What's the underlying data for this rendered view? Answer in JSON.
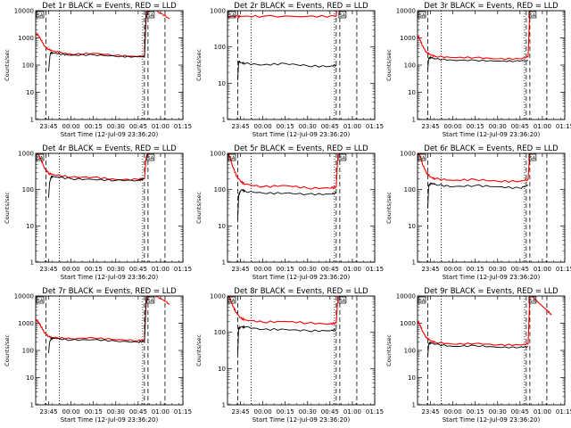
{
  "chart_data": [
    {
      "type": "line",
      "title": "Det 1r BLACK = Events, RED = LLD",
      "ylabel": "Counts/sec",
      "xlabel": "Start Time (12-Jul-09 23:36:20)",
      "yscale": "log",
      "ylim": [
        1,
        10000
      ],
      "xticks": [
        "23:45",
        "00:00",
        "00:15",
        "00:30",
        "00:45",
        "01:00",
        "01:15"
      ],
      "y_ticks": [
        "1",
        "10",
        "100",
        "1000",
        "10000"
      ],
      "markers": [
        "SA",
        "SA"
      ],
      "series": [
        {
          "color": "#000000",
          "x": [
            23.75,
            23.76,
            23.77,
            23.8,
            23.9,
            24.0,
            24.25,
            24.5,
            24.7,
            24.82,
            24.84,
            24.86
          ],
          "y": [
            60,
            150,
            280,
            280,
            250,
            230,
            240,
            210,
            200,
            210,
            12000,
            12000
          ]
        },
        {
          "color": "#ff0000",
          "x": [
            23.61,
            23.63,
            23.66,
            23.7,
            23.75,
            23.8,
            23.9,
            24.0,
            24.25,
            24.5,
            24.7,
            24.82,
            24.84,
            24.9,
            25.0,
            25.1
          ],
          "y": [
            1400,
            1300,
            900,
            500,
            370,
            330,
            280,
            250,
            270,
            230,
            210,
            210,
            7000,
            12000,
            8000,
            5000
          ]
        }
      ]
    },
    {
      "type": "line",
      "title": "Det 2r BLACK = Events, RED = LLD",
      "ylabel": "Counts/sec",
      "xlabel": "Start Time (12-Jul-09 23:36:20)",
      "yscale": "log",
      "ylim": [
        1,
        1000
      ],
      "xticks": [
        "23:45",
        "00:00",
        "00:15",
        "00:30",
        "00:45",
        "01:00",
        "01:15"
      ],
      "y_ticks": [
        "1",
        "10",
        "100",
        "1000"
      ],
      "markers": [
        "SA",
        "SA"
      ],
      "series": [
        {
          "color": "#000000",
          "x": [
            23.72,
            23.73,
            23.75,
            23.8,
            24.0,
            24.25,
            24.5,
            24.75,
            24.82
          ],
          "y": [
            12,
            40,
            37,
            35,
            32,
            35,
            30,
            29,
            32
          ]
        },
        {
          "color": "#ff0000",
          "x": [
            23.61,
            23.72,
            23.75,
            24.0,
            24.5,
            24.82,
            24.83
          ],
          "y": [
            700,
            700,
            700,
            700,
            700,
            700,
            1200
          ]
        }
      ]
    },
    {
      "type": "line",
      "title": "Det 3r BLACK = Events, RED = LLD",
      "ylabel": "Counts/sec",
      "xlabel": "Start Time (12-Jul-09 23:36:20)",
      "yscale": "log",
      "ylim": [
        1,
        10000
      ],
      "xticks": [
        "23:45",
        "00:00",
        "00:15",
        "00:30",
        "00:45",
        "01:00",
        "01:15"
      ],
      "y_ticks": [
        "1",
        "10",
        "100",
        "1000",
        "10000"
      ],
      "markers": [
        "SA",
        "SA"
      ],
      "series": [
        {
          "color": "#000000",
          "x": [
            23.72,
            23.73,
            23.76,
            23.8,
            24.0,
            24.25,
            24.5,
            24.7,
            24.84
          ],
          "y": [
            70,
            180,
            190,
            170,
            150,
            150,
            140,
            140,
            150
          ]
        },
        {
          "color": "#ff0000",
          "x": [
            23.61,
            23.63,
            23.66,
            23.7,
            23.75,
            23.8,
            24.0,
            24.25,
            24.5,
            24.75,
            24.84,
            24.86
          ],
          "y": [
            1200,
            900,
            500,
            300,
            240,
            210,
            190,
            190,
            170,
            170,
            200,
            12000
          ]
        }
      ]
    },
    {
      "type": "line",
      "title": "Det 4r BLACK = Events, RED = LLD",
      "ylabel": "Counts/sec",
      "xlabel": "Start Time (12-Jul-09 23:36:20)",
      "yscale": "log",
      "ylim": [
        1,
        1000
      ],
      "xticks": [
        "23:45",
        "00:00",
        "00:15",
        "00:30",
        "00:45",
        "01:00",
        "01:15"
      ],
      "y_ticks": [
        "1",
        "10",
        "100",
        "1000"
      ],
      "markers": [
        "SA",
        "SA"
      ],
      "series": [
        {
          "color": "#000000",
          "x": [
            23.75,
            23.76,
            23.78,
            23.8,
            24.0,
            24.25,
            24.5,
            24.75,
            24.82
          ],
          "y": [
            60,
            150,
            230,
            230,
            200,
            190,
            180,
            180,
            200
          ]
        },
        {
          "color": "#ff0000",
          "x": [
            23.61,
            23.63,
            23.66,
            23.7,
            23.75,
            23.8,
            24.0,
            24.25,
            24.5,
            24.75,
            24.82,
            24.84,
            24.9,
            25.0,
            25.1
          ],
          "y": [
            1200,
            1000,
            700,
            400,
            280,
            260,
            220,
            220,
            190,
            190,
            200,
            800,
            1200,
            1200,
            1200
          ]
        }
      ]
    },
    {
      "type": "line",
      "title": "Det 5r BLACK = Events, RED = LLD",
      "ylabel": "Counts/sec",
      "xlabel": "Start Time (12-Jul-09 23:36:20)",
      "yscale": "log",
      "ylim": [
        1,
        1000
      ],
      "xticks": [
        "23:45",
        "00:00",
        "00:15",
        "00:30",
        "00:45",
        "01:00",
        "01:15"
      ],
      "y_ticks": [
        "1",
        "10",
        "100",
        "1000"
      ],
      "markers": [
        "SA",
        "SA"
      ],
      "series": [
        {
          "color": "#000000",
          "x": [
            23.72,
            23.73,
            23.76,
            23.8,
            24.0,
            24.25,
            24.5,
            24.75,
            24.82
          ],
          "y": [
            15,
            70,
            100,
            90,
            80,
            80,
            75,
            75,
            80
          ]
        },
        {
          "color": "#ff0000",
          "x": [
            23.61,
            23.63,
            23.66,
            23.7,
            23.75,
            23.8,
            24.0,
            24.25,
            24.5,
            24.75,
            24.82,
            24.84
          ],
          "y": [
            1000,
            800,
            450,
            250,
            170,
            140,
            120,
            130,
            110,
            110,
            120,
            1200
          ]
        }
      ]
    },
    {
      "type": "line",
      "title": "Det 6r BLACK = Events, RED = LLD",
      "ylabel": "Counts/sec",
      "xlabel": "Start Time (12-Jul-09 23:36:20)",
      "yscale": "log",
      "ylim": [
        1,
        1000
      ],
      "xticks": [
        "23:45",
        "00:00",
        "00:15",
        "00:30",
        "00:45",
        "01:00",
        "01:15"
      ],
      "y_ticks": [
        "1",
        "10",
        "100",
        "1000"
      ],
      "markers": [
        "SA",
        "SA"
      ],
      "series": [
        {
          "color": "#000000",
          "x": [
            23.72,
            23.73,
            23.76,
            23.8,
            24.0,
            24.25,
            24.5,
            24.75,
            24.84
          ],
          "y": [
            30,
            130,
            150,
            140,
            120,
            130,
            120,
            110,
            130
          ]
        },
        {
          "color": "#ff0000",
          "x": [
            23.61,
            23.63,
            23.66,
            23.7,
            23.75,
            23.8,
            24.0,
            24.25,
            24.5,
            24.75,
            24.84,
            24.86
          ],
          "y": [
            1100,
            900,
            500,
            300,
            220,
            200,
            180,
            190,
            170,
            170,
            190,
            1200
          ]
        }
      ]
    },
    {
      "type": "line",
      "title": "Det 7r BLACK = Events, RED = LLD",
      "ylabel": "Counts/sec",
      "xlabel": "Start Time (12-Jul-09 23:36:20)",
      "yscale": "log",
      "ylim": [
        1,
        10000
      ],
      "xticks": [
        "23:45",
        "00:00",
        "00:15",
        "00:30",
        "00:45",
        "01:00",
        "01:15"
      ],
      "y_ticks": [
        "1",
        "10",
        "100",
        "1000",
        "10000"
      ],
      "markers": [
        "SA",
        "SA"
      ],
      "series": [
        {
          "color": "#000000",
          "x": [
            23.75,
            23.76,
            23.78,
            23.8,
            24.0,
            24.25,
            24.5,
            24.75,
            24.82,
            24.84
          ],
          "y": [
            80,
            200,
            280,
            280,
            240,
            250,
            220,
            200,
            220,
            12000
          ]
        },
        {
          "color": "#ff0000",
          "x": [
            23.61,
            23.63,
            23.66,
            23.7,
            23.75,
            23.8,
            24.0,
            24.25,
            24.5,
            24.75,
            24.82,
            24.84,
            24.9,
            25.0,
            25.1
          ],
          "y": [
            1300,
            1200,
            800,
            450,
            320,
            300,
            270,
            290,
            250,
            230,
            240,
            7000,
            12000,
            8000,
            5000
          ]
        }
      ]
    },
    {
      "type": "line",
      "title": "Det 8r BLACK = Events, RED = LLD",
      "ylabel": "Counts/sec",
      "xlabel": "Start Time (12-Jul-09 23:36:20)",
      "yscale": "log",
      "ylim": [
        1,
        1000
      ],
      "xticks": [
        "23:45",
        "00:00",
        "00:15",
        "00:30",
        "00:45",
        "01:00",
        "01:15"
      ],
      "y_ticks": [
        "1",
        "10",
        "100",
        "1000"
      ],
      "markers": [
        "SA",
        "SA"
      ],
      "series": [
        {
          "color": "#000000",
          "x": [
            23.72,
            23.73,
            23.76,
            23.8,
            24.0,
            24.25,
            24.5,
            24.75,
            24.82
          ],
          "y": [
            25,
            130,
            140,
            140,
            120,
            120,
            110,
            110,
            120
          ]
        },
        {
          "color": "#ff0000",
          "x": [
            23.61,
            23.63,
            23.66,
            23.7,
            23.75,
            23.8,
            24.0,
            24.25,
            24.5,
            24.75,
            24.82,
            24.84
          ],
          "y": [
            1100,
            900,
            550,
            350,
            250,
            220,
            190,
            200,
            180,
            170,
            180,
            1200
          ]
        }
      ]
    },
    {
      "type": "line",
      "title": "Det 9r BLACK = Events, RED = LLD",
      "ylabel": "Counts/sec",
      "xlabel": "Start Time (12-Jul-09 23:36:20)",
      "yscale": "log",
      "ylim": [
        1,
        10000
      ],
      "xticks": [
        "23:45",
        "00:00",
        "00:15",
        "00:30",
        "00:45",
        "01:00",
        "01:15"
      ],
      "y_ticks": [
        "1",
        "10",
        "100",
        "1000",
        "10000"
      ],
      "markers": [
        "SA",
        "SA"
      ],
      "series": [
        {
          "color": "#000000",
          "x": [
            23.72,
            23.73,
            23.76,
            23.8,
            24.0,
            24.25,
            24.5,
            24.75,
            24.84
          ],
          "y": [
            60,
            180,
            190,
            170,
            140,
            150,
            130,
            130,
            140
          ]
        },
        {
          "color": "#ff0000",
          "x": [
            23.61,
            23.63,
            23.66,
            23.7,
            23.75,
            23.8,
            24.0,
            24.25,
            24.5,
            24.75,
            24.84,
            24.86,
            24.95,
            25.05,
            25.1
          ],
          "y": [
            1200,
            900,
            500,
            300,
            230,
            200,
            170,
            180,
            160,
            160,
            170,
            12000,
            6000,
            3000,
            2000
          ]
        }
      ]
    }
  ]
}
